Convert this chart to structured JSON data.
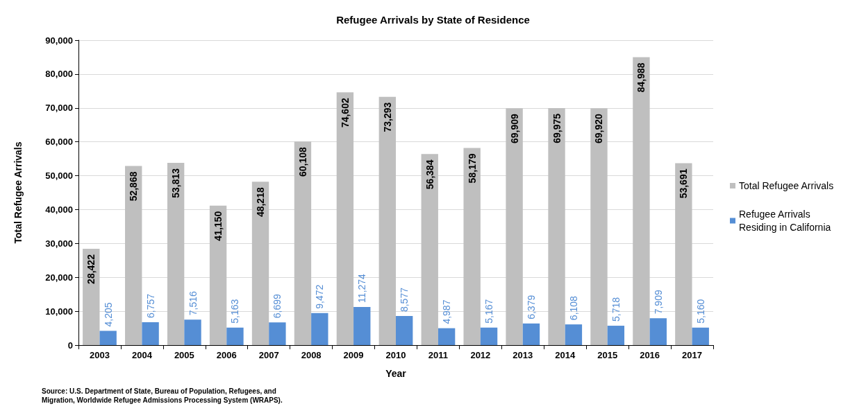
{
  "chart_data": {
    "type": "bar",
    "title": "Refugee Arrivals by State of Residence",
    "xlabel": "Year",
    "ylabel": "Total Refugee Arrivals",
    "categories": [
      "2003",
      "2004",
      "2005",
      "2006",
      "2007",
      "2008",
      "2009",
      "2010",
      "2011",
      "2012",
      "2013",
      "2014",
      "2015",
      "2016",
      "2017"
    ],
    "series": [
      {
        "name": "Total Refugee Arrivals",
        "color": "#bfbfbf",
        "values": [
          28422,
          52868,
          53813,
          41150,
          48218,
          60108,
          74602,
          73293,
          56384,
          58179,
          69909,
          69975,
          69920,
          84988,
          53691
        ],
        "value_labels": [
          "28,422",
          "52,868",
          "53,813",
          "41,150",
          "48,218",
          "60,108",
          "74,602",
          "73,293",
          "56,384",
          "58,179",
          "69,909",
          "69,975",
          "69,920",
          "84,988",
          "53,691"
        ]
      },
      {
        "name": "Refugee Arrivals Residing in California",
        "color": "#558ed5",
        "values": [
          4205,
          6757,
          7516,
          5163,
          6699,
          9472,
          11274,
          8577,
          4987,
          5167,
          6379,
          6108,
          5718,
          7909,
          5160
        ],
        "value_labels": [
          "4,205",
          "6,757",
          "7,516",
          "5,163",
          "6,699",
          "9,472",
          "11,274",
          "8,577",
          "4,987",
          "5,167",
          "6,379",
          "6,108",
          "5,718",
          "7,909",
          "5,160"
        ]
      }
    ],
    "ylim": [
      0,
      90000
    ],
    "yticks": [
      {
        "value": 0,
        "label": "0"
      },
      {
        "value": 10000,
        "label": "10,000"
      },
      {
        "value": 20000,
        "label": "20,000"
      },
      {
        "value": 30000,
        "label": "30,000"
      },
      {
        "value": 40000,
        "label": "40,000"
      },
      {
        "value": 50000,
        "label": "50,000"
      },
      {
        "value": 60000,
        "label": "60,000"
      },
      {
        "value": 70000,
        "label": "70,000"
      },
      {
        "value": 80000,
        "label": "80,000"
      },
      {
        "value": 90000,
        "label": "90,000"
      }
    ],
    "grid": "y",
    "legend": "right",
    "annotations": [
      "Source: U.S. Department of State, Bureau of Population, Refugees, and\nMigration, Worldwide Refugee Admissions Processing System (WRAPS)."
    ]
  }
}
